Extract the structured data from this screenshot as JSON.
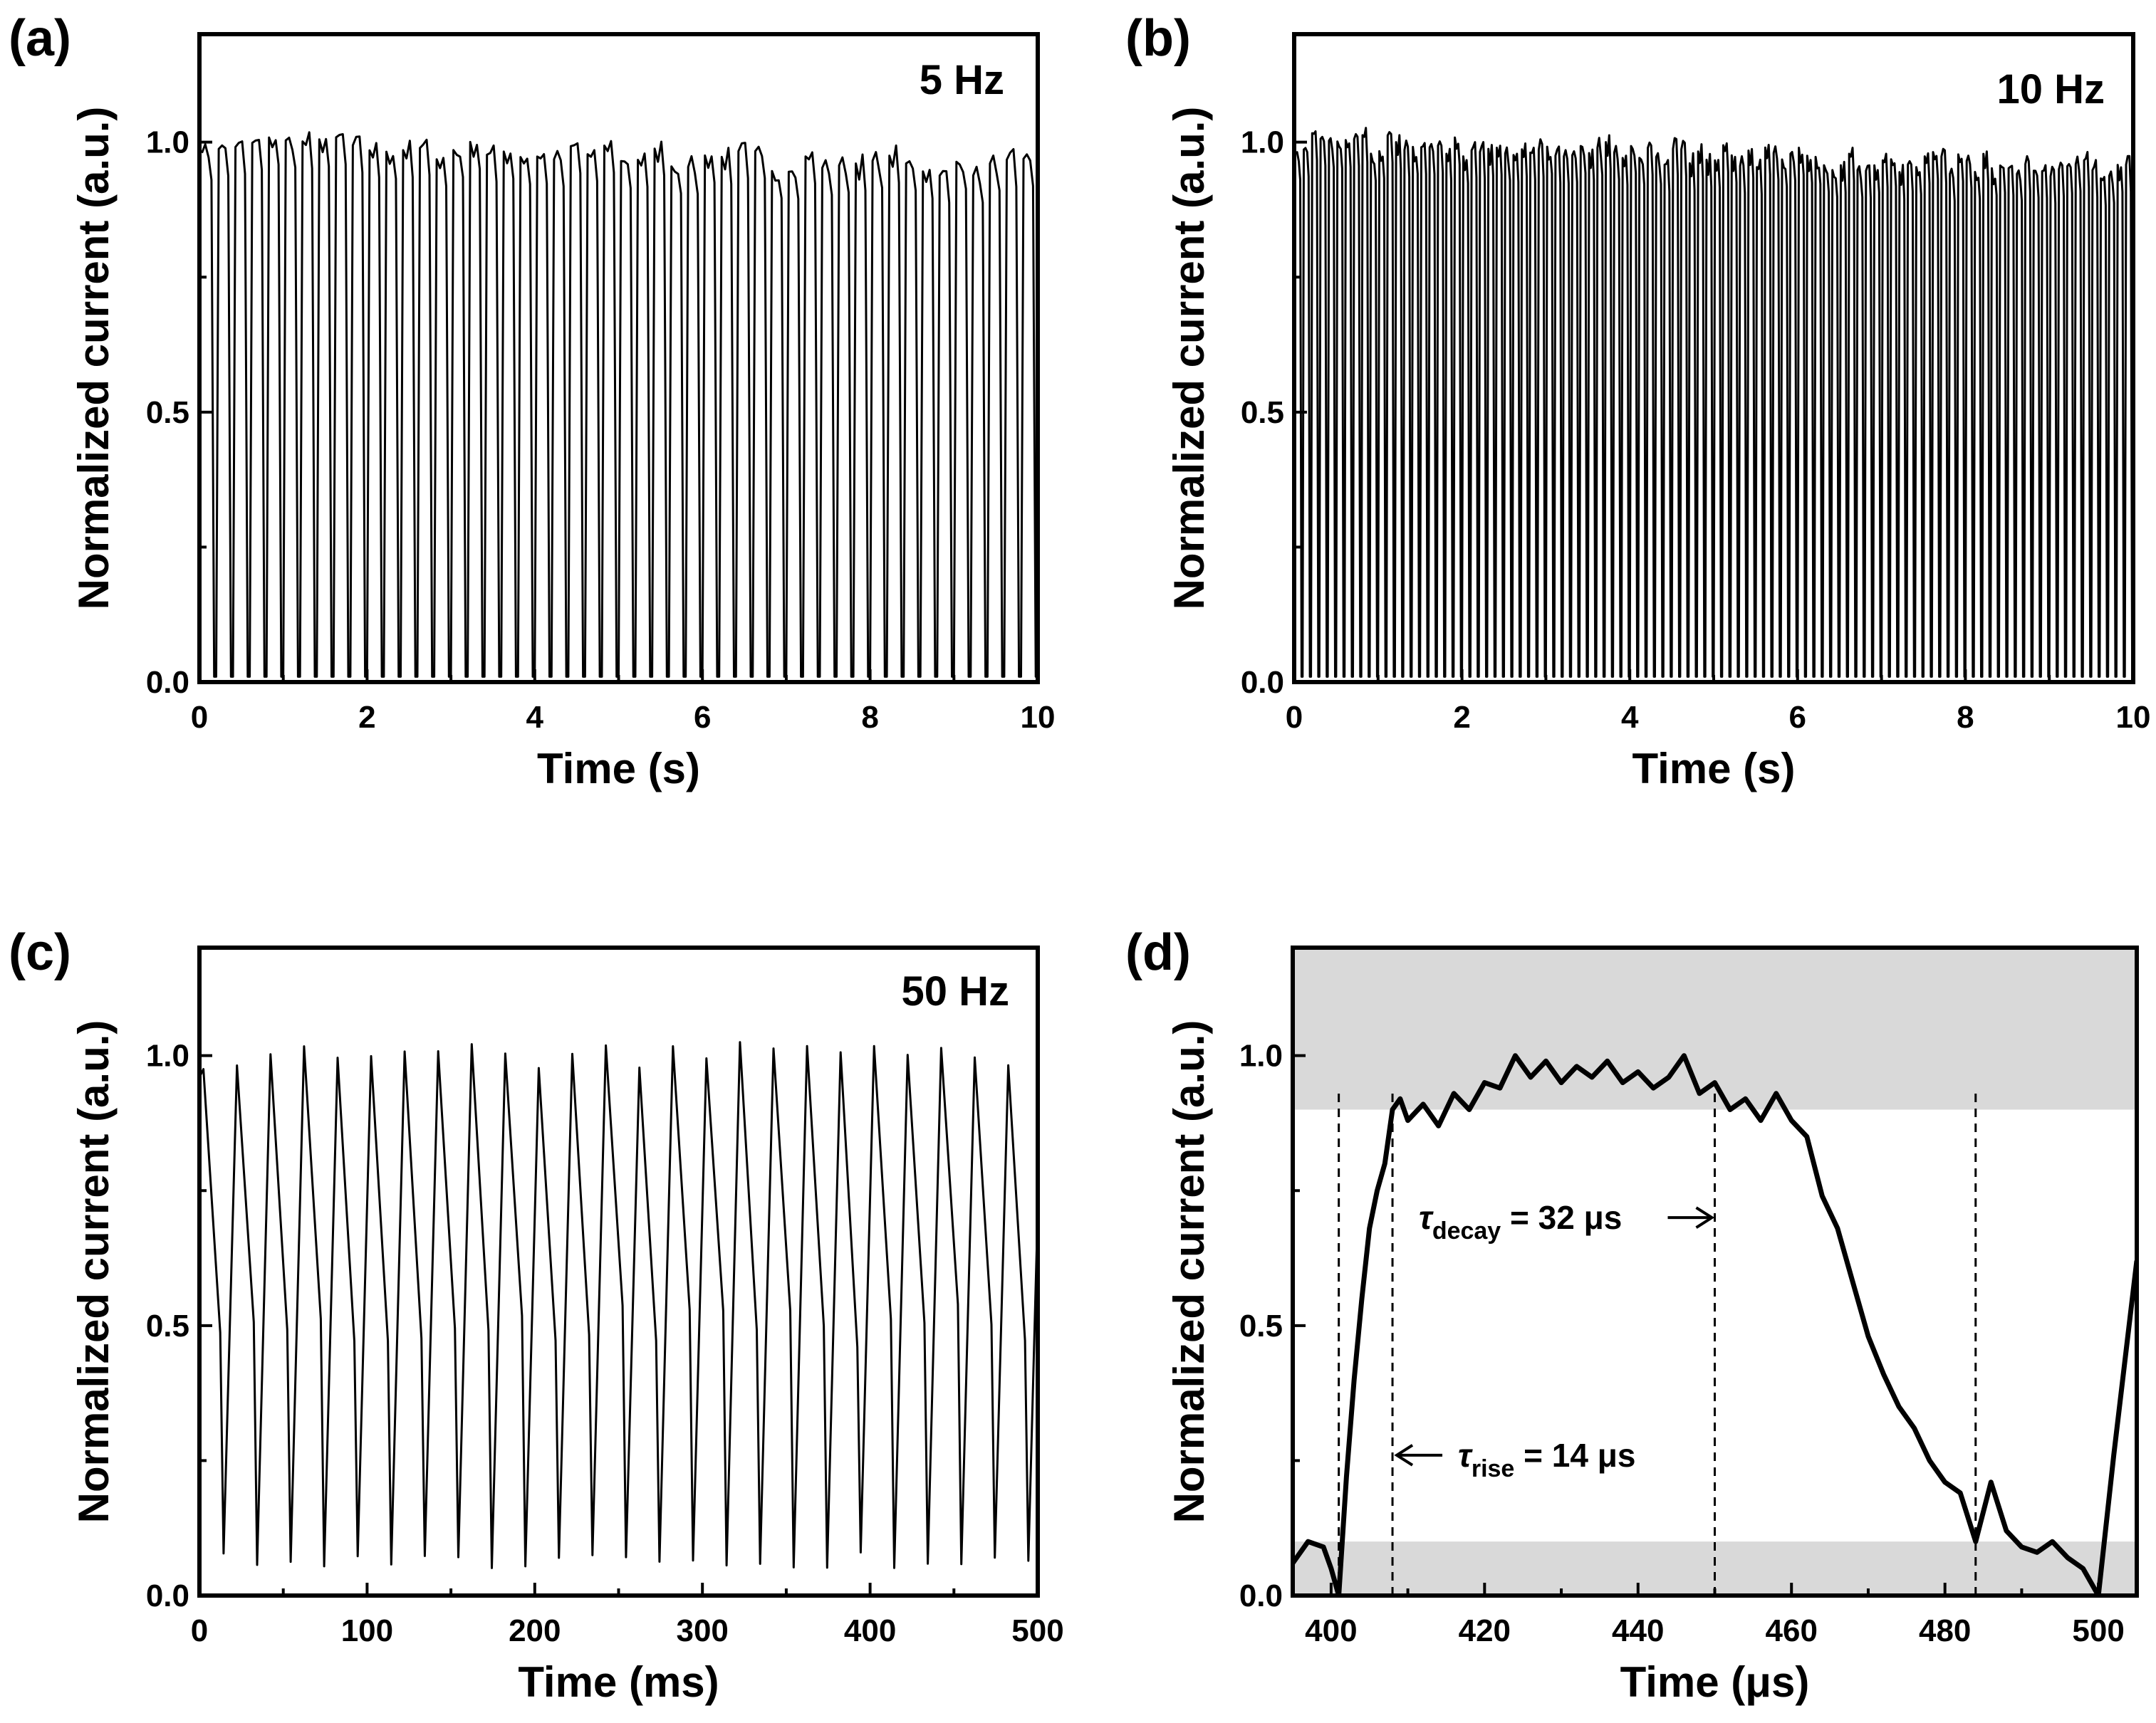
{
  "chart_data": [
    {
      "id": "a",
      "type": "line",
      "panel_label": "(a)",
      "frequency_label": "5 Hz",
      "xlabel": "Time (s)",
      "ylabel": "Normalized current (a.u.)",
      "xlim": [
        0,
        10
      ],
      "ylim": [
        0,
        1.2
      ],
      "xticks": [
        0,
        2,
        4,
        6,
        8,
        10
      ],
      "yticks": [
        0.0,
        0.5,
        1.0
      ],
      "ytick_labels": [
        "0.0",
        "0.5",
        "1.0"
      ],
      "signal": {
        "frequency_hz": 5,
        "peak_start": 1.0,
        "peak_end": 0.95,
        "trough": 0.0,
        "duration": 10
      }
    },
    {
      "id": "b",
      "type": "line",
      "panel_label": "(b)",
      "frequency_label": "10 Hz",
      "xlabel": "Time (s)",
      "ylabel": "Normalized current (a.u.)",
      "xlim": [
        0,
        10
      ],
      "ylim": [
        0,
        1.2
      ],
      "xticks": [
        0,
        2,
        4,
        6,
        8,
        10
      ],
      "yticks": [
        0.0,
        0.5,
        1.0
      ],
      "ytick_labels": [
        "0.0",
        "0.5",
        "1.0"
      ],
      "signal": {
        "frequency_hz": 10,
        "peak_start": 1.0,
        "peak_end": 0.95,
        "trough": 0.0,
        "duration": 10
      }
    },
    {
      "id": "c",
      "type": "line",
      "panel_label": "(c)",
      "frequency_label": "50 Hz",
      "xlabel": "Time (ms)",
      "ylabel": "Normalized current (a.u.)",
      "xlim": [
        0,
        500
      ],
      "ylim": [
        0,
        1.2
      ],
      "xticks": [
        0,
        100,
        200,
        300,
        400,
        500
      ],
      "yticks": [
        0.0,
        0.5,
        1.0
      ],
      "ytick_labels": [
        "0.0",
        "0.5",
        "1.0"
      ],
      "signal": {
        "frequency_hz": 50,
        "peak": 1.0,
        "trough": 0.05,
        "duration_ms": 500
      }
    },
    {
      "id": "d",
      "type": "line",
      "panel_label": "(d)",
      "xlabel": "Time (μs)",
      "ylabel": "Normalized current (a.u.)",
      "xlim": [
        395,
        505
      ],
      "ylim": [
        0,
        1.2
      ],
      "xticks": [
        400,
        420,
        440,
        460,
        480,
        500
      ],
      "yticks": [
        0.0,
        0.5,
        1.0
      ],
      "ytick_labels": [
        "0.0",
        "0.5",
        "1.0"
      ],
      "shaded_bands": [
        [
          0.9,
          1.2
        ],
        [
          0.0,
          0.1
        ]
      ],
      "markers_x": [
        401,
        408,
        450,
        484
      ],
      "annotations": {
        "decay": {
          "symbol": "τ",
          "subscript": "decay",
          "text": " = 32 μs",
          "arrow_to_x": 450,
          "y": 0.7
        },
        "rise": {
          "symbol": "τ",
          "subscript": "rise",
          "text": " = 14 μs",
          "arrow_to_x": 408,
          "y": 0.26
        }
      },
      "points": [
        [
          395,
          0.06
        ],
        [
          397,
          0.1
        ],
        [
          399,
          0.09
        ],
        [
          400,
          0.05
        ],
        [
          401,
          0.0
        ],
        [
          402,
          0.22
        ],
        [
          403,
          0.4
        ],
        [
          404,
          0.55
        ],
        [
          405,
          0.68
        ],
        [
          406,
          0.75
        ],
        [
          407,
          0.8
        ],
        [
          408,
          0.9
        ],
        [
          409,
          0.92
        ],
        [
          410,
          0.88
        ],
        [
          412,
          0.91
        ],
        [
          414,
          0.87
        ],
        [
          416,
          0.93
        ],
        [
          418,
          0.9
        ],
        [
          420,
          0.95
        ],
        [
          422,
          0.94
        ],
        [
          424,
          1.0
        ],
        [
          426,
          0.96
        ],
        [
          428,
          0.99
        ],
        [
          430,
          0.95
        ],
        [
          432,
          0.98
        ],
        [
          434,
          0.96
        ],
        [
          436,
          0.99
        ],
        [
          438,
          0.95
        ],
        [
          440,
          0.97
        ],
        [
          442,
          0.94
        ],
        [
          444,
          0.96
        ],
        [
          446,
          1.0
        ],
        [
          448,
          0.93
        ],
        [
          450,
          0.95
        ],
        [
          452,
          0.9
        ],
        [
          454,
          0.92
        ],
        [
          456,
          0.88
        ],
        [
          458,
          0.93
        ],
        [
          460,
          0.88
        ],
        [
          462,
          0.85
        ],
        [
          464,
          0.74
        ],
        [
          466,
          0.68
        ],
        [
          468,
          0.58
        ],
        [
          470,
          0.48
        ],
        [
          472,
          0.41
        ],
        [
          474,
          0.35
        ],
        [
          476,
          0.31
        ],
        [
          478,
          0.25
        ],
        [
          480,
          0.21
        ],
        [
          482,
          0.19
        ],
        [
          484,
          0.1
        ],
        [
          486,
          0.21
        ],
        [
          488,
          0.12
        ],
        [
          490,
          0.09
        ],
        [
          492,
          0.08
        ],
        [
          494,
          0.1
        ],
        [
          496,
          0.07
        ],
        [
          498,
          0.05
        ],
        [
          500,
          0.0
        ],
        [
          502,
          0.26
        ],
        [
          504,
          0.5
        ],
        [
          505,
          0.62
        ]
      ]
    }
  ]
}
